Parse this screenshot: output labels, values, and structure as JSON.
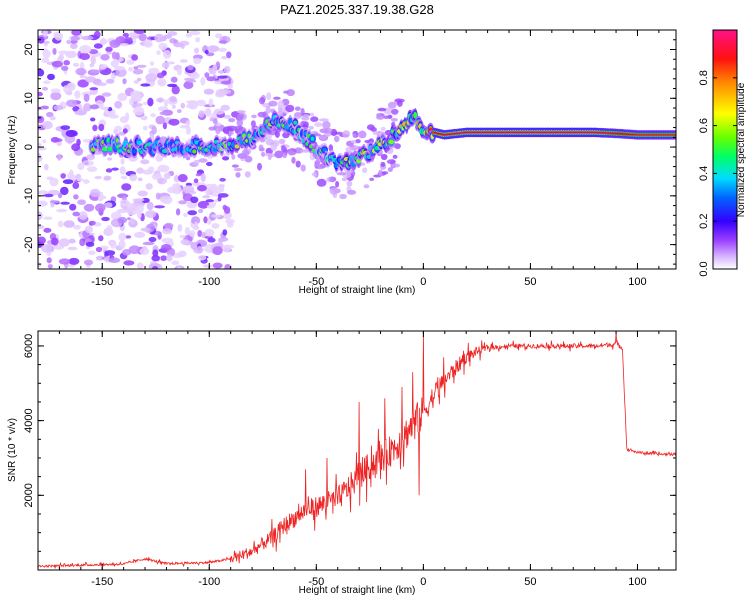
{
  "title": "PAZ1.2025.337.19.38.G28",
  "chart_data": [
    {
      "type": "heatmap",
      "name": "spectrogram",
      "xlabel": "Height of straight line (km)",
      "ylabel": "Frequency (Hz)",
      "xlim": [
        -180,
        118
      ],
      "ylim": [
        -25,
        24
      ],
      "xticks": [
        -150,
        -100,
        -50,
        0,
        50,
        100
      ],
      "yticks": [
        -20,
        -10,
        0,
        10,
        20
      ],
      "colorbar": {
        "label": "Normalized spectral amplitude",
        "range": [
          0.0,
          1.0
        ],
        "ticks": [
          0.0,
          0.2,
          0.4,
          0.6,
          0.8
        ]
      },
      "ridge": {
        "x": [
          -150,
          -140,
          -130,
          -120,
          -110,
          -100,
          -90,
          -80,
          -75,
          -70,
          -65,
          -60,
          -55,
          -50,
          -45,
          -40,
          -35,
          -30,
          -25,
          -20,
          -15,
          -10,
          -5,
          0,
          5,
          10,
          20,
          40,
          60,
          80,
          90,
          100,
          110,
          118
        ],
        "y": [
          0.5,
          0.3,
          0.0,
          0.2,
          0.0,
          0.3,
          0.8,
          1.5,
          3.5,
          5.0,
          5.0,
          4.0,
          2.0,
          0.0,
          -2.0,
          -3.5,
          -3.5,
          -2.5,
          -1.0,
          0.5,
          2.0,
          4.0,
          6.0,
          4.0,
          3.0,
          2.5,
          3.0,
          3.0,
          3.0,
          3.0,
          2.8,
          2.5,
          2.5,
          2.5
        ],
        "peak_amplitude": [
          0.5,
          0.55,
          0.5,
          0.45,
          0.45,
          0.5,
          0.55,
          0.55,
          0.5,
          0.55,
          0.5,
          0.45,
          0.45,
          0.5,
          0.45,
          0.5,
          0.6,
          0.55,
          0.55,
          0.6,
          0.6,
          0.65,
          0.75,
          0.85,
          0.9,
          0.95,
          0.98,
          1.0,
          1.0,
          1.0,
          0.9,
          0.85,
          0.85,
          0.85
        ]
      },
      "noise_region_x": [
        -180,
        -90
      ]
    },
    {
      "type": "line",
      "name": "snr",
      "xlabel": "Height of straight line (km)",
      "ylabel": "SNR (10 * v/v)",
      "xlim": [
        -180,
        118
      ],
      "ylim": [
        0,
        6400
      ],
      "xticks": [
        -150,
        -100,
        -50,
        0,
        50,
        100
      ],
      "yticks": [
        2000,
        4000,
        6000
      ],
      "line_color": "#ee2222",
      "series": {
        "name": "SNR",
        "x": [
          -180,
          -160,
          -140,
          -130,
          -120,
          -100,
          -90,
          -80,
          -75,
          -70,
          -65,
          -60,
          -55,
          -50,
          -45,
          -40,
          -35,
          -30,
          -25,
          -20,
          -15,
          -10,
          -5,
          0,
          5,
          10,
          15,
          20,
          25,
          30,
          40,
          50,
          60,
          70,
          80,
          90,
          93,
          95,
          100,
          110,
          118
        ],
        "y": [
          100,
          130,
          160,
          300,
          170,
          200,
          300,
          500,
          700,
          900,
          1200,
          1400,
          1600,
          1700,
          1800,
          1900,
          2200,
          2500,
          2800,
          3000,
          3200,
          3500,
          3900,
          4200,
          4700,
          5100,
          5400,
          5700,
          5850,
          5950,
          6000,
          6000,
          6000,
          6000,
          6000,
          6050,
          5950,
          3250,
          3150,
          3100,
          3100
        ],
        "spikes": [
          {
            "x": 0,
            "y": 6350
          },
          {
            "x": -5,
            "y": 5300
          },
          {
            "x": -10,
            "y": 4900
          },
          {
            "x": -2,
            "y": 2000
          },
          {
            "x": -18,
            "y": 4600
          },
          {
            "x": -30,
            "y": 4500
          },
          {
            "x": -45,
            "y": 3000
          },
          {
            "x": -55,
            "y": 2700
          },
          {
            "x": 90,
            "y": 6400
          }
        ]
      }
    }
  ]
}
